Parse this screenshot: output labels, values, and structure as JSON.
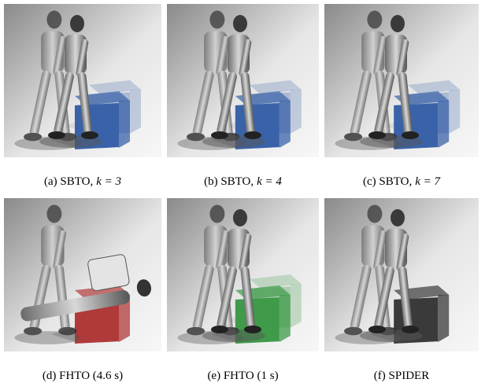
{
  "panels": [
    {
      "label": "(a) SBTO,",
      "math": "k = 3"
    },
    {
      "label": "(b) SBTO,",
      "math": "k = 4"
    },
    {
      "label": "(c) SBTO,",
      "math": "k = 7"
    },
    {
      "label": "(d) FHTO (4.6 s)"
    },
    {
      "label": "(e) FHTO (1 s)"
    },
    {
      "label": "(f) SPIDER"
    }
  ]
}
